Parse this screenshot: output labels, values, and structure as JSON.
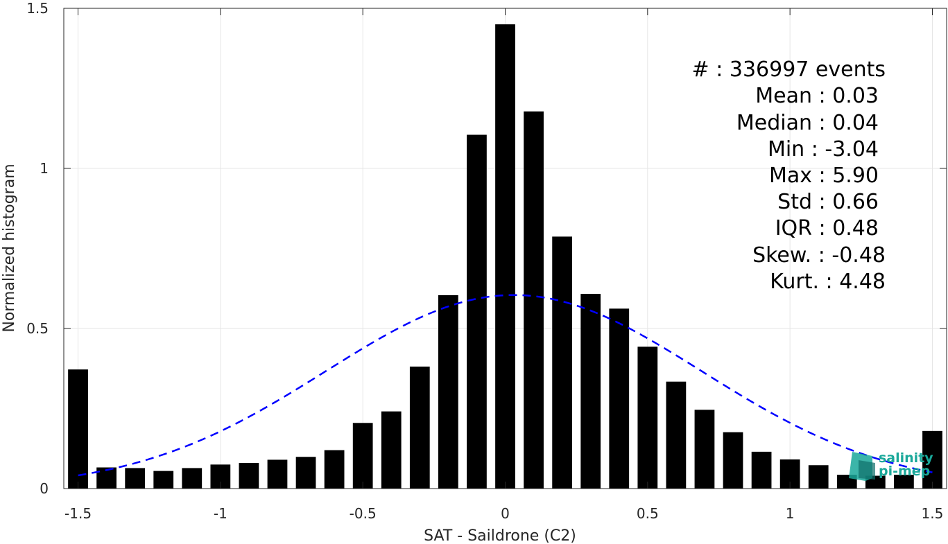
{
  "chart_data": {
    "type": "bar",
    "xlabel": "SAT - Saildrone (C2)",
    "ylabel": "Normalized histogram",
    "xlim": [
      -1.55,
      1.55
    ],
    "ylim": [
      0,
      1.5
    ],
    "x_ticks": [
      -1.5,
      -1,
      -0.5,
      0,
      0.5,
      1,
      1.5
    ],
    "x_tick_labels": [
      "-1.5",
      "-1",
      "-0.5",
      "0",
      "0.5",
      "1",
      "1.5"
    ],
    "y_ticks": [
      0,
      0.5,
      1,
      1.5
    ],
    "y_tick_labels": [
      "0",
      "0.5",
      "1",
      "1.5"
    ],
    "grid": true,
    "bar_color": "#000000",
    "x": [
      -1.5,
      -1.4,
      -1.3,
      -1.2,
      -1.1,
      -1.0,
      -0.9,
      -0.8,
      -0.7,
      -0.6,
      -0.5,
      -0.4,
      -0.3,
      -0.2,
      -0.1,
      0.0,
      0.1,
      0.2,
      0.3,
      0.4,
      0.5,
      0.6,
      0.7,
      0.8,
      0.9,
      1.0,
      1.1,
      1.2,
      1.3,
      1.4,
      1.5
    ],
    "values": [
      0.372,
      0.066,
      0.064,
      0.055,
      0.064,
      0.075,
      0.08,
      0.09,
      0.099,
      0.12,
      0.205,
      0.241,
      0.381,
      0.604,
      1.105,
      1.45,
      1.178,
      0.787,
      0.608,
      0.562,
      0.443,
      0.334,
      0.246,
      0.176,
      0.115,
      0.091,
      0.073,
      0.043,
      0.04,
      0.043,
      0.18
    ],
    "fit": {
      "type": "gaussian",
      "mean": 0.03,
      "std": 0.66,
      "x_range": [
        -1.5,
        1.5
      ],
      "color": "#0000ff",
      "style": "dashed"
    },
    "annotations": [
      "#  : 336997 events",
      "Mean : 0.03",
      "Median : 0.04",
      "Min : -3.04",
      "Max : 5.90",
      "Std : 0.66",
      "IQR : 0.48",
      "Skew. : -0.48",
      "Kurt. : 4.48"
    ]
  },
  "logo": {
    "line1": "salinity",
    "line2": "pi-mep",
    "color": "#1aa89a"
  }
}
